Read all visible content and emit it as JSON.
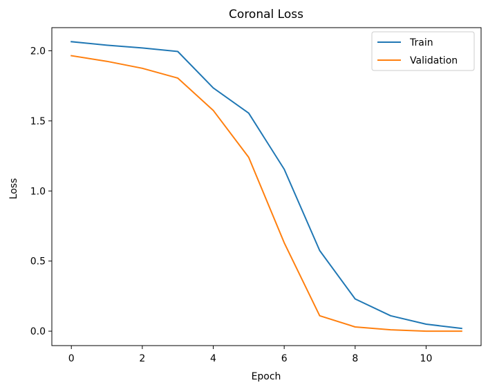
{
  "chart_data": {
    "type": "line",
    "title": "Coronal Loss",
    "xlabel": "Epoch",
    "ylabel": "Loss",
    "xlim": [
      -0.55,
      11.55
    ],
    "ylim": [
      -0.103,
      2.165
    ],
    "xticks": [
      0,
      2,
      4,
      6,
      8,
      10
    ],
    "yticks": [
      0.0,
      0.5,
      1.0,
      1.5,
      2.0
    ],
    "xtick_labels": [
      "0",
      "2",
      "4",
      "6",
      "8",
      "10"
    ],
    "ytick_labels": [
      "0.0",
      "0.5",
      "1.0",
      "1.5",
      "2.0"
    ],
    "grid": false,
    "legend_position": "top-right",
    "x": [
      0,
      1,
      2,
      3,
      4,
      5,
      6,
      7,
      8,
      9,
      10,
      11
    ],
    "series": [
      {
        "name": "Train",
        "color": "#1f77b4",
        "values": [
          2.065,
          2.04,
          2.02,
          1.995,
          1.735,
          1.555,
          1.155,
          0.575,
          0.23,
          0.11,
          0.05,
          0.02
        ]
      },
      {
        "name": "Validation",
        "color": "#ff7f0e",
        "values": [
          1.965,
          1.925,
          1.875,
          1.805,
          1.575,
          1.24,
          0.63,
          0.11,
          0.03,
          0.01,
          0.0,
          0.0
        ]
      }
    ]
  }
}
